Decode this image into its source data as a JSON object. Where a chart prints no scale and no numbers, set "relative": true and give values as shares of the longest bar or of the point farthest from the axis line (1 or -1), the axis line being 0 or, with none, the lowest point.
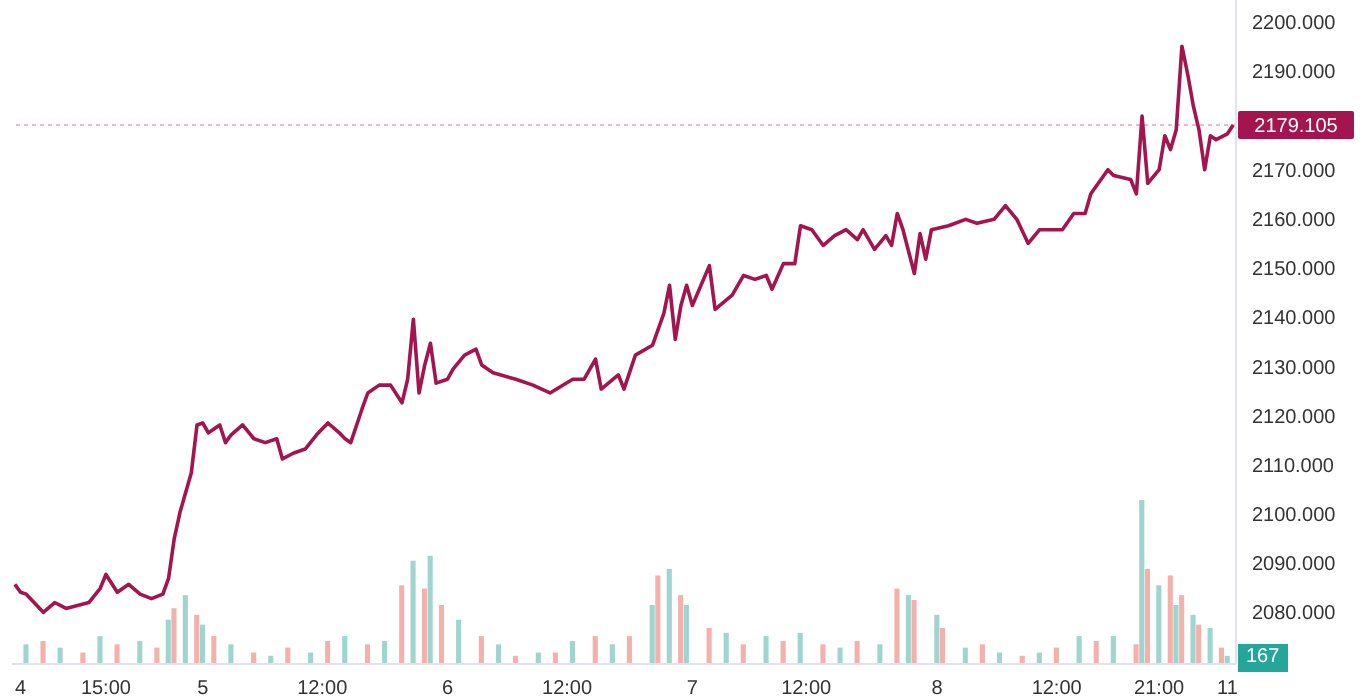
{
  "chart_data": [
    {
      "type": "line",
      "categories": [
        null,
        "4",
        null,
        null,
        null,
        null,
        null,
        null,
        null,
        null,
        null,
        null,
        null,
        null,
        null,
        null,
        "15:00",
        null,
        null,
        null,
        null,
        null,
        null,
        null,
        null,
        null,
        null,
        null,
        null,
        null,
        null,
        null,
        null,
        "5",
        null,
        null,
        null,
        null,
        null,
        null,
        null,
        null,
        null,
        null,
        null,
        null,
        null,
        null,
        null,
        null,
        null,
        null,
        null,
        null,
        "12:00",
        null,
        null,
        null,
        null,
        null,
        null,
        null,
        null,
        null,
        null,
        null,
        null,
        null,
        null,
        null,
        null,
        null,
        null,
        null,
        null,
        null,
        "6",
        null,
        null,
        null,
        null,
        null,
        null,
        null,
        null,
        null,
        null,
        null,
        null,
        null,
        null,
        null,
        null,
        null,
        null,
        null,
        null,
        "12:00",
        null,
        null,
        null,
        null,
        null,
        null,
        null,
        null,
        null,
        null,
        null,
        null,
        null,
        null,
        null,
        null,
        null,
        null,
        null,
        null,
        null,
        "7",
        null,
        null,
        null,
        null,
        null,
        null,
        null,
        null,
        null,
        null,
        null,
        null,
        null,
        null,
        null,
        null,
        null,
        null,
        null,
        "12:00",
        null,
        null,
        null,
        null,
        null,
        null,
        null,
        null,
        null,
        null,
        null,
        null,
        null,
        null,
        null,
        null,
        null,
        null,
        null,
        null,
        null,
        null,
        "8",
        null,
        null,
        null,
        null,
        null,
        null,
        null,
        null,
        null,
        null,
        null,
        null,
        null,
        null,
        null,
        null,
        null,
        null,
        null,
        null,
        "12:00",
        null,
        null,
        null,
        null,
        null,
        null,
        null,
        null,
        null,
        null,
        null,
        null,
        null,
        null,
        null,
        null,
        null,
        "21:00",
        null,
        null,
        null,
        null,
        null,
        null,
        null,
        null,
        null,
        null,
        null,
        "11",
        null
      ],
      "series": [
        {
          "color": "#a3154f",
          "values": [
            2085.7,
            2084.1,
            2083.7,
            null,
            null,
            2080.0,
            null,
            2082.0,
            null,
            2080.8,
            null,
            null,
            null,
            2082.0,
            null,
            2084.9,
            2087.7,
            null,
            2084.1,
            null,
            2085.7,
            null,
            2083.7,
            null,
            2082.8,
            null,
            2083.7,
            2086.9,
            2095.0,
            2100.3,
            null,
            2108.4,
            2118.1,
            2118.5,
            2116.5,
            null,
            2118.1,
            2114.5,
            2116.1,
            null,
            2118.1,
            null,
            2115.3,
            null,
            2114.5,
            null,
            2115.3,
            2111.2,
            null,
            2112.4,
            null,
            2113.2,
            null,
            2116.1,
            null,
            2118.5,
            null,
            2116.5,
            2115.3,
            2114.5,
            null,
            2121.4,
            2124.6,
            null,
            2126.2,
            null,
            2126.2,
            null,
            2122.6,
            2127.4,
            2139.6,
            2124.6,
            2130.3,
            2134.7,
            2126.6,
            null,
            2127.4,
            2129.5,
            null,
            2132.3,
            null,
            2133.5,
            2130.3,
            null,
            2128.7,
            null,
            null,
            null,
            2127.4,
            null,
            null,
            2126.2,
            null,
            null,
            2124.6,
            null,
            null,
            null,
            2127.4,
            null,
            2127.4,
            null,
            2131.5,
            2125.4,
            null,
            null,
            2128.3,
            2125.4,
            null,
            2132.3,
            null,
            null,
            2134.3,
            null,
            2140.8,
            2146.5,
            2135.5,
            2142.4,
            2146.5,
            2142.4,
            null,
            null,
            2150.5,
            2141.6,
            null,
            null,
            2144.5,
            null,
            2148.5,
            null,
            2147.7,
            null,
            2148.5,
            2145.7,
            null,
            2150.9,
            null,
            2150.9,
            2158.6,
            null,
            2157.8,
            null,
            2154.6,
            null,
            2156.6,
            null,
            2157.8,
            null,
            2155.8,
            2157.8,
            null,
            2153.8,
            null,
            2156.6,
            2154.6,
            2161.1,
            2157.8,
            null,
            2148.9,
            2157.0,
            2151.8,
            2157.8,
            null,
            null,
            2158.6,
            null,
            null,
            2159.9,
            null,
            2159.1,
            null,
            null,
            2159.9,
            null,
            2162.7,
            null,
            2159.9,
            null,
            2155.0,
            null,
            2157.8,
            null,
            null,
            null,
            2157.8,
            null,
            2161.1,
            null,
            2161.1,
            2165.1,
            null,
            null,
            2170.0,
            2168.8,
            null,
            null,
            2168.0,
            2165.1,
            2180.9,
            2167.2,
            null,
            2170.0,
            2176.9,
            2174.1,
            2178.1,
            2195.1,
            2189.5,
            2183.0,
            2178.1,
            2170.0,
            2176.9,
            2176.1,
            null,
            2177.3,
            2179.1
          ]
        }
      ],
      "ylim": [
        2069.5,
        2204.5
      ],
      "yticks": [
        {
          "value": 2080,
          "label": "2080.000"
        },
        {
          "value": 2090,
          "label": "2090.000"
        },
        {
          "value": 2100,
          "label": "2100.000"
        },
        {
          "value": 2110,
          "label": "2110.000"
        },
        {
          "value": 2120,
          "label": "2120.000"
        },
        {
          "value": 2130,
          "label": "2130.000"
        },
        {
          "value": 2140,
          "label": "2140.000"
        },
        {
          "value": 2150,
          "label": "2150.000"
        },
        {
          "value": 2160,
          "label": "2160.000"
        },
        {
          "value": 2170,
          "label": "2170.000"
        },
        {
          "value": 2190,
          "label": "2190.000"
        },
        {
          "value": 2200,
          "label": "2200.000"
        }
      ],
      "ref_lines": [
        {
          "axis": "y",
          "value": 2179.105,
          "label": "2179.105",
          "color": "#f2b8c6",
          "line_style": "dotted"
        }
      ],
      "line_style": "solid",
      "marker": "none"
    },
    {
      "type": "bar",
      "relative": true,
      "categories": [
        null,
        null,
        null,
        null,
        null,
        null,
        null,
        null,
        null,
        null,
        null,
        null,
        null,
        null,
        null,
        null,
        null,
        null,
        null,
        null,
        null,
        null,
        null,
        null,
        null,
        null,
        null,
        null,
        null,
        null,
        null,
        null,
        null,
        null,
        null,
        null,
        null,
        null,
        null,
        null,
        null,
        null,
        null,
        null,
        null,
        null,
        null,
        null,
        null,
        null,
        null,
        null,
        null,
        null,
        null,
        null,
        null,
        null,
        null,
        null,
        null,
        null,
        null,
        null,
        null,
        null,
        null,
        null,
        null,
        null,
        null,
        null,
        null,
        null,
        null,
        null,
        null,
        null,
        null,
        null,
        null,
        null,
        null,
        null,
        null,
        null,
        null,
        null,
        null,
        null,
        null,
        null,
        null,
        null,
        null,
        null,
        null,
        null,
        null,
        null,
        null,
        null,
        null,
        null,
        null,
        null,
        null,
        null,
        null,
        null,
        null,
        null,
        null,
        null,
        null,
        null,
        null,
        null,
        null,
        null,
        null,
        null,
        null,
        null,
        null,
        null,
        null,
        null,
        null,
        null,
        null,
        null,
        null,
        null,
        null,
        null,
        null,
        null,
        null,
        null,
        null,
        null,
        null,
        null,
        null,
        null,
        null,
        null,
        null,
        null,
        null,
        null,
        null,
        null,
        null,
        null,
        null,
        null,
        null,
        null,
        null,
        null,
        null,
        null,
        null,
        null,
        null,
        null,
        null,
        null,
        null,
        null,
        null,
        null,
        null,
        null,
        null,
        null,
        null,
        null,
        null,
        null,
        null,
        null,
        null,
        null,
        null,
        null,
        null,
        null,
        null,
        null,
        null,
        null,
        null,
        null,
        null,
        null,
        null,
        null,
        null,
        null,
        null,
        null,
        null,
        null,
        null,
        null,
        null,
        null,
        null,
        null,
        null,
        null,
        null
      ],
      "values": [
        null,
        null,
        0.12,
        null,
        null,
        0.14,
        null,
        null,
        0.1,
        null,
        null,
        null,
        0.07,
        null,
        null,
        0.17,
        null,
        null,
        0.12,
        null,
        null,
        null,
        0.14,
        null,
        null,
        0.1,
        null,
        0.27,
        0.34,
        null,
        0.42,
        null,
        0.3,
        0.24,
        null,
        0.17,
        null,
        null,
        0.12,
        null,
        null,
        null,
        0.07,
        null,
        null,
        0.05,
        null,
        null,
        0.1,
        null,
        null,
        null,
        0.07,
        null,
        null,
        0.14,
        null,
        null,
        0.17,
        null,
        null,
        null,
        0.12,
        null,
        null,
        0.14,
        null,
        null,
        0.48,
        null,
        0.63,
        null,
        0.46,
        0.66,
        null,
        0.36,
        null,
        null,
        0.27,
        null,
        null,
        null,
        0.17,
        null,
        null,
        0.12,
        null,
        null,
        0.05,
        null,
        null,
        null,
        0.07,
        null,
        null,
        0.07,
        null,
        null,
        0.14,
        null,
        null,
        null,
        0.17,
        null,
        null,
        0.12,
        null,
        null,
        0.17,
        null,
        null,
        null,
        0.36,
        0.54,
        null,
        0.58,
        null,
        0.42,
        0.36,
        null,
        null,
        null,
        0.22,
        null,
        null,
        0.19,
        null,
        null,
        0.12,
        null,
        null,
        null,
        0.17,
        null,
        null,
        0.14,
        null,
        null,
        0.19,
        null,
        null,
        null,
        0.12,
        null,
        null,
        0.1,
        null,
        null,
        0.14,
        null,
        null,
        null,
        0.12,
        null,
        null,
        0.46,
        null,
        0.42,
        0.39,
        null,
        null,
        null,
        0.3,
        0.22,
        null,
        null,
        null,
        0.1,
        null,
        null,
        0.12,
        null,
        null,
        0.07,
        null,
        null,
        null,
        0.05,
        null,
        null,
        0.07,
        null,
        null,
        0.1,
        null,
        null,
        null,
        0.17,
        null,
        null,
        0.14,
        null,
        null,
        0.17,
        null,
        null,
        null,
        0.12,
        1,
        0.58,
        null,
        0.48,
        null,
        0.54,
        0.36,
        0.42,
        null,
        0.3,
        0.24,
        null,
        0.22,
        null,
        0.1,
        0.05,
        null
      ],
      "colors": [
        null,
        null,
        "#9fd5ce",
        null,
        null,
        "#f3b1ac",
        null,
        null,
        "#9fd5ce",
        null,
        null,
        null,
        "#f3b1ac",
        null,
        null,
        "#9fd5ce",
        null,
        null,
        "#f3b1ac",
        null,
        null,
        null,
        "#9fd5ce",
        null,
        null,
        "#f3b1ac",
        null,
        "#9fd5ce",
        "#f3b1ac",
        null,
        "#9fd5ce",
        null,
        "#f3b1ac",
        "#9fd5ce",
        null,
        "#f3b1ac",
        null,
        null,
        "#9fd5ce",
        null,
        null,
        null,
        "#f3b1ac",
        null,
        null,
        "#9fd5ce",
        null,
        null,
        "#f3b1ac",
        null,
        null,
        null,
        "#9fd5ce",
        null,
        null,
        "#f3b1ac",
        null,
        null,
        "#9fd5ce",
        null,
        null,
        null,
        "#f3b1ac",
        null,
        null,
        "#9fd5ce",
        null,
        null,
        "#f3b1ac",
        null,
        "#9fd5ce",
        null,
        "#f3b1ac",
        "#9fd5ce",
        null,
        "#f3b1ac",
        null,
        null,
        "#9fd5ce",
        null,
        null,
        null,
        "#f3b1ac",
        null,
        null,
        "#9fd5ce",
        null,
        null,
        "#f3b1ac",
        null,
        null,
        null,
        "#9fd5ce",
        null,
        null,
        "#f3b1ac",
        null,
        null,
        "#9fd5ce",
        null,
        null,
        null,
        "#f3b1ac",
        null,
        null,
        "#9fd5ce",
        null,
        null,
        "#f3b1ac",
        null,
        null,
        null,
        "#9fd5ce",
        "#f3b1ac",
        null,
        "#9fd5ce",
        null,
        "#f3b1ac",
        "#9fd5ce",
        null,
        null,
        null,
        "#f3b1ac",
        null,
        null,
        "#9fd5ce",
        null,
        null,
        "#f3b1ac",
        null,
        null,
        null,
        "#9fd5ce",
        null,
        null,
        "#f3b1ac",
        null,
        null,
        "#9fd5ce",
        null,
        null,
        null,
        "#f3b1ac",
        null,
        null,
        "#9fd5ce",
        null,
        null,
        "#f3b1ac",
        null,
        null,
        null,
        "#9fd5ce",
        null,
        null,
        "#f3b1ac",
        null,
        "#9fd5ce",
        "#f3b1ac",
        null,
        null,
        null,
        "#9fd5ce",
        "#f3b1ac",
        null,
        null,
        null,
        "#9fd5ce",
        null,
        null,
        "#f3b1ac",
        null,
        null,
        "#9fd5ce",
        null,
        null,
        null,
        "#f3b1ac",
        null,
        null,
        "#9fd5ce",
        null,
        null,
        "#f3b1ac",
        null,
        null,
        null,
        "#9fd5ce",
        null,
        null,
        "#f3b1ac",
        null,
        null,
        "#9fd5ce",
        null,
        null,
        null,
        "#f3b1ac",
        "#9fd5ce",
        "#f3b1ac",
        null,
        "#9fd5ce",
        null,
        "#f3b1ac",
        "#9fd5ce",
        "#f3b1ac",
        null,
        "#9fd5ce",
        "#f3b1ac",
        null,
        "#9fd5ce",
        null,
        "#f3b1ac",
        "#9fd5ce",
        null
      ],
      "annotations": [
        "167"
      ]
    }
  ]
}
